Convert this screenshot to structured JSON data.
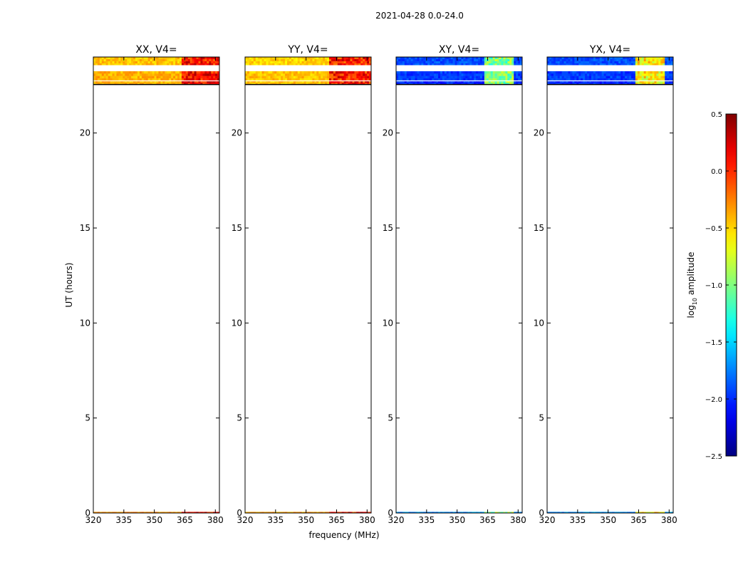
{
  "figure": {
    "suptitle": "2021-04-28 0.0-24.0",
    "ylabel": "UT (hours)",
    "xlabel": "frequency (MHz)",
    "colorbar_label_prefix": "log",
    "colorbar_label_sub": "10",
    "colorbar_label_suffix": " amplitude"
  },
  "chart_data": [
    {
      "type": "heatmap",
      "title": "XX, V4=",
      "x_ticks": [
        320,
        335,
        350,
        365,
        380
      ],
      "xlim": [
        320,
        382
      ],
      "y_ticks": [
        0,
        5,
        10,
        15,
        20
      ],
      "ylim": [
        0,
        24
      ],
      "data_rows": [
        {
          "y0": 23.55,
          "y1": 24.0,
          "base": -0.45
        },
        {
          "y0": 22.75,
          "y1": 23.25,
          "base": -0.4
        },
        {
          "y0": 22.55,
          "y1": 22.72,
          "base": -0.4
        },
        {
          "y0": 0.0,
          "y1": 0.06,
          "base": -0.3
        }
      ],
      "bright_freq_range": [
        363,
        382
      ],
      "bright_value": 0.1
    },
    {
      "type": "heatmap",
      "title": "YY, V4=",
      "x_ticks": [
        320,
        335,
        350,
        365,
        380
      ],
      "xlim": [
        320,
        382
      ],
      "y_ticks": [
        0,
        5,
        10,
        15,
        20
      ],
      "ylim": [
        0,
        24
      ],
      "data_rows": [
        {
          "y0": 23.55,
          "y1": 24.0,
          "base": -0.5
        },
        {
          "y0": 22.75,
          "y1": 23.25,
          "base": -0.45
        },
        {
          "y0": 22.55,
          "y1": 22.72,
          "base": -0.45
        },
        {
          "y0": 0.0,
          "y1": 0.06,
          "base": -0.35
        }
      ],
      "bright_freq_range": [
        361,
        382
      ],
      "bright_value": 0.05
    },
    {
      "type": "heatmap",
      "title": "XY, V4=",
      "x_ticks": [
        320,
        335,
        350,
        365,
        380
      ],
      "xlim": [
        320,
        382
      ],
      "y_ticks": [
        0,
        5,
        10,
        15,
        20
      ],
      "ylim": [
        0,
        24
      ],
      "data_rows": [
        {
          "y0": 23.55,
          "y1": 24.0,
          "base": -1.9
        },
        {
          "y0": 22.75,
          "y1": 23.25,
          "base": -1.95
        },
        {
          "y0": 22.55,
          "y1": 22.72,
          "base": -2.0
        },
        {
          "y0": 0.0,
          "y1": 0.06,
          "base": -1.7
        }
      ],
      "bright_freq_range": [
        363,
        378
      ],
      "bright_value": -1.0
    },
    {
      "type": "heatmap",
      "title": "YX, V4=",
      "x_ticks": [
        320,
        335,
        350,
        365,
        380
      ],
      "xlim": [
        320,
        382
      ],
      "y_ticks": [
        0,
        5,
        10,
        15,
        20
      ],
      "ylim": [
        0,
        24
      ],
      "data_rows": [
        {
          "y0": 23.55,
          "y1": 24.0,
          "base": -1.9
        },
        {
          "y0": 22.75,
          "y1": 23.25,
          "base": -1.95
        },
        {
          "y0": 22.55,
          "y1": 22.72,
          "base": -2.0
        },
        {
          "y0": 0.0,
          "y1": 0.06,
          "base": -1.7
        }
      ],
      "bright_freq_range": [
        363,
        378
      ],
      "bright_value": -0.6
    }
  ],
  "colorbar": {
    "colormap": "jet",
    "vmin": -2.5,
    "vmax": 0.5,
    "ticks": [
      "0.5",
      "0.0",
      "−0.5",
      "−1.0",
      "−1.5",
      "−2.0",
      "−2.5"
    ],
    "tick_values": [
      0.5,
      0.0,
      -0.5,
      -1.0,
      -1.5,
      -2.0,
      -2.5
    ]
  }
}
